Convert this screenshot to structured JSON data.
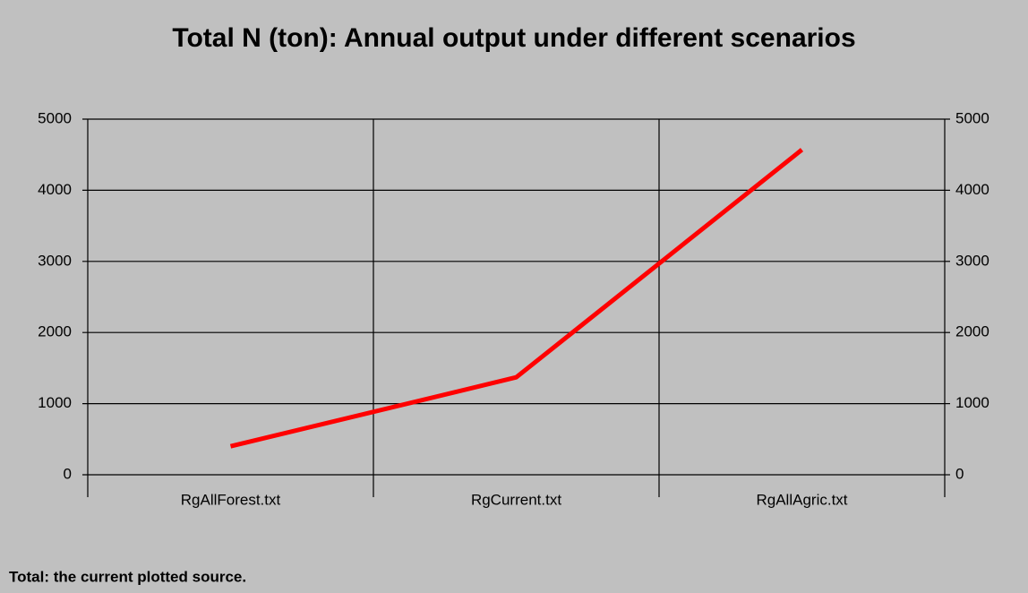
{
  "chart_data": {
    "type": "line",
    "title": "Total N (ton): Annual output under different scenarios",
    "categories": [
      "RgAllForest.txt",
      "RgCurrent.txt",
      "RgAllAgric.txt"
    ],
    "series": [
      {
        "name": "Total",
        "color": "#ff0000",
        "values": [
          400,
          1370,
          4570
        ]
      }
    ],
    "ylim": [
      0,
      5000
    ],
    "yticks": [
      0,
      1000,
      2000,
      3000,
      4000,
      5000
    ],
    "y2lim": [
      0,
      5000
    ],
    "y2ticks": [
      0,
      1000,
      2000,
      3000,
      4000,
      5000
    ],
    "grid": true,
    "footnote": "Total: the current plotted source."
  }
}
